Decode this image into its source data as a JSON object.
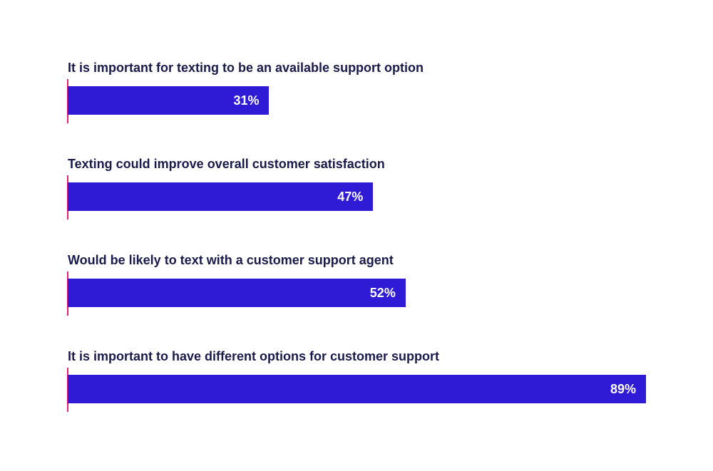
{
  "chart_data": {
    "type": "bar",
    "orientation": "horizontal",
    "categories": [
      "It is important for texting to be an available support option",
      "Texting could improve overall customer satisfaction",
      "Would be likely to text with a customer support agent",
      "It is important to have different options for customer support"
    ],
    "values": [
      31,
      47,
      52,
      89
    ],
    "value_labels": [
      "31%",
      "47%",
      "52%",
      "89%"
    ],
    "xlim": [
      0,
      100
    ],
    "grid": false,
    "legend": "none",
    "colors": {
      "bar": "#2f1bd6",
      "axis": "#e0247a",
      "label_text": "#1a1a4b",
      "value_text": "#ffffff"
    }
  }
}
